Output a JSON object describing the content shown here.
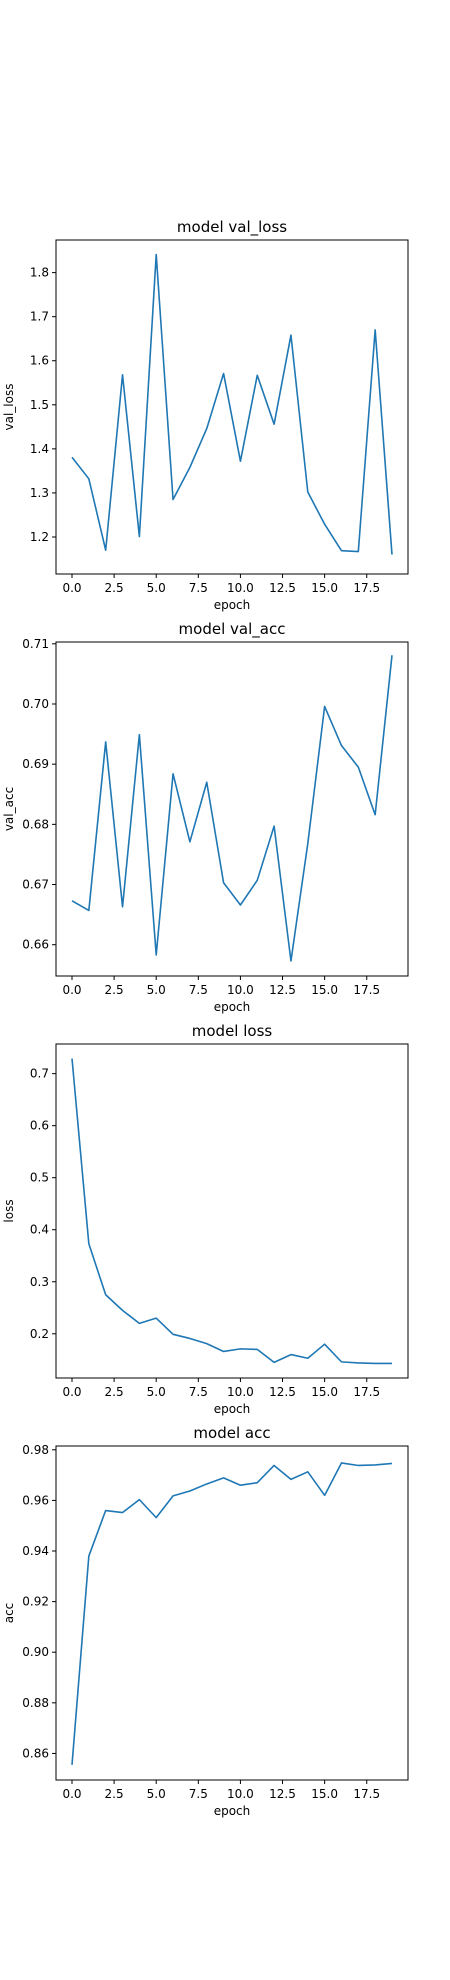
{
  "chart_data": [
    {
      "type": "line",
      "title": "model val_loss",
      "xlabel": "epoch",
      "ylabel": "val_loss",
      "xlim": [
        -0.95,
        19.95
      ],
      "ylim": [
        1.116,
        1.874
      ],
      "xticks": [
        0.0,
        2.5,
        5.0,
        7.5,
        10.0,
        12.5,
        15.0,
        17.5
      ],
      "xtick_labels": [
        "0.0",
        "2.5",
        "5.0",
        "7.5",
        "10.0",
        "12.5",
        "15.0",
        "17.5"
      ],
      "yticks": [
        1.2,
        1.3,
        1.4,
        1.5,
        1.6,
        1.7,
        1.8
      ],
      "ytick_labels": [
        "1.2",
        "1.3",
        "1.4",
        "1.5",
        "1.6",
        "1.7",
        "1.8"
      ],
      "grid": false,
      "series": [
        {
          "color": "#1f77b4",
          "x": [
            0,
            1,
            2,
            3,
            4,
            5,
            6,
            7,
            8,
            9,
            10,
            11,
            12,
            13,
            14,
            15,
            16,
            17,
            18,
            19
          ],
          "values": [
            1.381,
            1.332,
            1.17,
            1.568,
            1.201,
            1.841,
            1.285,
            1.358,
            1.446,
            1.571,
            1.372,
            1.567,
            1.456,
            1.658,
            1.302,
            1.229,
            1.169,
            1.167,
            1.67,
            1.16
          ]
        }
      ]
    },
    {
      "type": "line",
      "title": "model val_acc",
      "xlabel": "epoch",
      "ylabel": "val_acc",
      "xlim": [
        -0.95,
        19.95
      ],
      "ylim": [
        0.6548,
        0.7103
      ],
      "xticks": [
        0.0,
        2.5,
        5.0,
        7.5,
        10.0,
        12.5,
        15.0,
        17.5
      ],
      "xtick_labels": [
        "0.0",
        "2.5",
        "5.0",
        "7.5",
        "10.0",
        "12.5",
        "15.0",
        "17.5"
      ],
      "yticks": [
        0.66,
        0.67,
        0.68,
        0.69,
        0.7,
        0.71
      ],
      "ytick_labels": [
        "0.66",
        "0.67",
        "0.68",
        "0.69",
        "0.70",
        "0.71"
      ],
      "grid": false,
      "series": [
        {
          "color": "#1f77b4",
          "x": [
            0,
            1,
            2,
            3,
            4,
            5,
            6,
            7,
            8,
            9,
            10,
            11,
            12,
            13,
            14,
            15,
            16,
            17,
            18,
            19
          ],
          "values": [
            0.6673,
            0.6657,
            0.6937,
            0.6663,
            0.6949,
            0.6583,
            0.6884,
            0.6771,
            0.687,
            0.6703,
            0.6666,
            0.6707,
            0.6797,
            0.6573,
            0.6768,
            0.6996,
            0.6931,
            0.6895,
            0.6816,
            0.7081
          ]
        }
      ]
    },
    {
      "type": "line",
      "title": "model loss",
      "xlabel": "epoch",
      "ylabel": "loss",
      "xlim": [
        -0.95,
        19.95
      ],
      "ylim": [
        0.115,
        0.757
      ],
      "xticks": [
        0.0,
        2.5,
        5.0,
        7.5,
        10.0,
        12.5,
        15.0,
        17.5
      ],
      "xtick_labels": [
        "0.0",
        "2.5",
        "5.0",
        "7.5",
        "10.0",
        "12.5",
        "15.0",
        "17.5"
      ],
      "yticks": [
        0.2,
        0.3,
        0.4,
        0.5,
        0.6,
        0.7
      ],
      "ytick_labels": [
        "0.2",
        "0.3",
        "0.4",
        "0.5",
        "0.6",
        "0.7"
      ],
      "grid": false,
      "series": [
        {
          "color": "#1f77b4",
          "x": [
            0,
            1,
            2,
            3,
            4,
            5,
            6,
            7,
            8,
            9,
            10,
            11,
            12,
            13,
            14,
            15,
            16,
            17,
            18,
            19
          ],
          "values": [
            0.729,
            0.373,
            0.275,
            0.245,
            0.22,
            0.23,
            0.199,
            0.191,
            0.181,
            0.166,
            0.171,
            0.17,
            0.145,
            0.16,
            0.153,
            0.18,
            0.146,
            0.144,
            0.143,
            0.143
          ]
        }
      ]
    },
    {
      "type": "line",
      "title": "model acc",
      "xlabel": "epoch",
      "ylabel": "acc",
      "xlim": [
        -0.95,
        19.95
      ],
      "ylim": [
        0.8495,
        0.9815
      ],
      "xticks": [
        0.0,
        2.5,
        5.0,
        7.5,
        10.0,
        12.5,
        15.0,
        17.5
      ],
      "xtick_labels": [
        "0.0",
        "2.5",
        "5.0",
        "7.5",
        "10.0",
        "12.5",
        "15.0",
        "17.5"
      ],
      "yticks": [
        0.86,
        0.88,
        0.9,
        0.92,
        0.94,
        0.96,
        0.98
      ],
      "ytick_labels": [
        "0.86",
        "0.88",
        "0.90",
        "0.92",
        "0.94",
        "0.96",
        "0.98"
      ],
      "grid": false,
      "series": [
        {
          "color": "#1f77b4",
          "x": [
            0,
            1,
            2,
            3,
            4,
            5,
            6,
            7,
            8,
            9,
            10,
            11,
            12,
            13,
            14,
            15,
            16,
            17,
            18,
            19
          ],
          "values": [
            0.8555,
            0.938,
            0.956,
            0.9552,
            0.9603,
            0.9532,
            0.9618,
            0.9637,
            0.9665,
            0.9689,
            0.966,
            0.967,
            0.9738,
            0.9683,
            0.9713,
            0.962,
            0.9748,
            0.9738,
            0.974,
            0.9746
          ]
        }
      ]
    }
  ]
}
